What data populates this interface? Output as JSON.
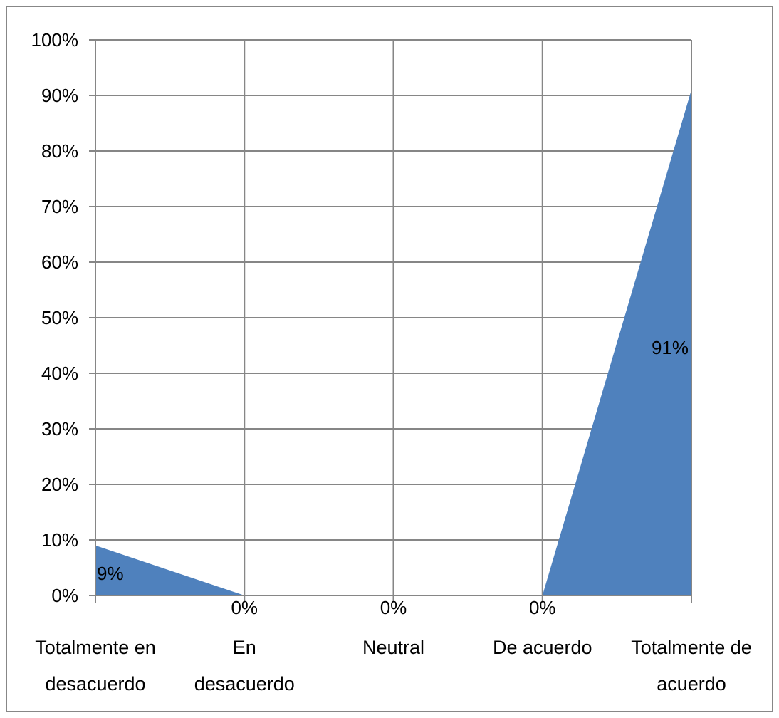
{
  "chart_data": {
    "type": "area",
    "categories": [
      [
        "Totalmente en",
        "desacuerdo"
      ],
      [
        "En",
        "desacuerdo"
      ],
      [
        "Neutral"
      ],
      [
        "De acuerdo"
      ],
      [
        "Totalmente de",
        "acuerdo"
      ]
    ],
    "values": [
      9,
      0,
      0,
      0,
      91
    ],
    "data_labels": [
      "9%",
      "0%",
      "0%",
      "0%",
      "91%"
    ],
    "y_ticks": [
      "0%",
      "10%",
      "20%",
      "30%",
      "40%",
      "50%",
      "60%",
      "70%",
      "80%",
      "90%",
      "100%"
    ],
    "ylim": [
      0,
      100
    ],
    "grid": true,
    "legend": "none",
    "colors": {
      "area": "#4f81bd",
      "grid": "#868686",
      "frame": "#878787"
    }
  }
}
